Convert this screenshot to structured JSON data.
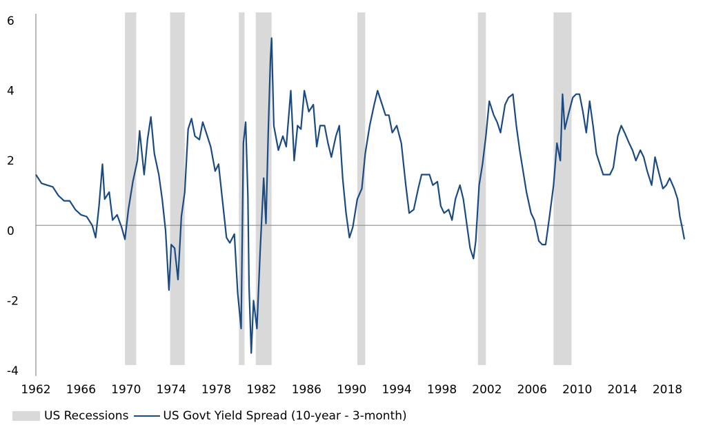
{
  "chart_data": {
    "type": "line",
    "title": "",
    "xlabel": "",
    "ylabel": "",
    "xlim": [
      1962,
      2019.5
    ],
    "ylim": [
      -4,
      6
    ],
    "x_ticks": [
      "1962",
      "1966",
      "1970",
      "1974",
      "1978",
      "1982",
      "1986",
      "1990",
      "1994",
      "1998",
      "2002",
      "2006",
      "2010",
      "2014",
      "2018"
    ],
    "y_ticks": [
      "6",
      "4",
      "2",
      "0",
      "-2",
      "-4"
    ],
    "grid": false,
    "legend_position": "bottom-left",
    "zero_line": 0.15,
    "recessions": [
      {
        "start": 1969.9,
        "end": 1970.9
      },
      {
        "start": 1973.9,
        "end": 1975.2
      },
      {
        "start": 1980.0,
        "end": 1980.5
      },
      {
        "start": 1981.5,
        "end": 1982.9
      },
      {
        "start": 1990.5,
        "end": 1991.2
      },
      {
        "start": 2001.2,
        "end": 2001.9
      },
      {
        "start": 2007.9,
        "end": 2009.5
      }
    ],
    "series": [
      {
        "name": "US Govt Yield Spread (10-year - 3-month)",
        "color": "#1a4a80",
        "points": [
          [
            1962.0,
            1.6
          ],
          [
            1962.5,
            1.35
          ],
          [
            1963.0,
            1.3
          ],
          [
            1963.5,
            1.25
          ],
          [
            1964.0,
            1.0
          ],
          [
            1964.5,
            0.85
          ],
          [
            1965.0,
            0.85
          ],
          [
            1965.5,
            0.6
          ],
          [
            1966.0,
            0.45
          ],
          [
            1966.5,
            0.4
          ],
          [
            1967.0,
            0.15
          ],
          [
            1967.3,
            -0.2
          ],
          [
            1967.6,
            0.7
          ],
          [
            1967.9,
            1.9
          ],
          [
            1968.1,
            0.9
          ],
          [
            1968.5,
            1.1
          ],
          [
            1968.8,
            0.3
          ],
          [
            1969.2,
            0.45
          ],
          [
            1969.6,
            0.1
          ],
          [
            1969.9,
            -0.25
          ],
          [
            1970.2,
            0.6
          ],
          [
            1970.6,
            1.4
          ],
          [
            1971.0,
            2.0
          ],
          [
            1971.2,
            2.85
          ],
          [
            1971.6,
            1.6
          ],
          [
            1971.9,
            2.6
          ],
          [
            1972.2,
            3.25
          ],
          [
            1972.5,
            2.2
          ],
          [
            1972.9,
            1.6
          ],
          [
            1973.2,
            0.9
          ],
          [
            1973.5,
            0.0
          ],
          [
            1973.8,
            -1.7
          ],
          [
            1974.0,
            -0.4
          ],
          [
            1974.3,
            -0.5
          ],
          [
            1974.6,
            -1.4
          ],
          [
            1974.9,
            0.4
          ],
          [
            1975.2,
            1.1
          ],
          [
            1975.5,
            2.9
          ],
          [
            1975.8,
            3.2
          ],
          [
            1976.1,
            2.7
          ],
          [
            1976.5,
            2.6
          ],
          [
            1976.8,
            3.1
          ],
          [
            1977.1,
            2.8
          ],
          [
            1977.5,
            2.4
          ],
          [
            1977.9,
            1.7
          ],
          [
            1978.2,
            1.9
          ],
          [
            1978.5,
            1.0
          ],
          [
            1978.9,
            -0.2
          ],
          [
            1979.2,
            -0.35
          ],
          [
            1979.6,
            -0.1
          ],
          [
            1979.9,
            -1.8
          ],
          [
            1980.2,
            -2.8
          ],
          [
            1980.4,
            2.5
          ],
          [
            1980.6,
            3.1
          ],
          [
            1980.8,
            1.0
          ],
          [
            1980.9,
            -1.6
          ],
          [
            1981.1,
            -3.5
          ],
          [
            1981.3,
            -2.0
          ],
          [
            1981.6,
            -2.8
          ],
          [
            1981.9,
            -0.5
          ],
          [
            1982.2,
            1.5
          ],
          [
            1982.4,
            0.2
          ],
          [
            1982.6,
            2.8
          ],
          [
            1982.8,
            4.9
          ],
          [
            1982.9,
            5.5
          ],
          [
            1983.1,
            3.0
          ],
          [
            1983.5,
            2.3
          ],
          [
            1983.9,
            2.7
          ],
          [
            1984.2,
            2.4
          ],
          [
            1984.6,
            4.0
          ],
          [
            1984.9,
            2.0
          ],
          [
            1985.2,
            3.0
          ],
          [
            1985.5,
            2.9
          ],
          [
            1985.8,
            4.0
          ],
          [
            1986.2,
            3.4
          ],
          [
            1986.6,
            3.6
          ],
          [
            1986.9,
            2.4
          ],
          [
            1987.2,
            3.0
          ],
          [
            1987.6,
            3.0
          ],
          [
            1987.9,
            2.5
          ],
          [
            1988.2,
            2.1
          ],
          [
            1988.6,
            2.7
          ],
          [
            1988.9,
            3.0
          ],
          [
            1989.2,
            1.5
          ],
          [
            1989.5,
            0.5
          ],
          [
            1989.8,
            -0.2
          ],
          [
            1990.1,
            0.1
          ],
          [
            1990.5,
            0.9
          ],
          [
            1990.9,
            1.2
          ],
          [
            1991.2,
            2.2
          ],
          [
            1991.6,
            3.0
          ],
          [
            1992.0,
            3.6
          ],
          [
            1992.3,
            4.0
          ],
          [
            1992.7,
            3.6
          ],
          [
            1993.0,
            3.3
          ],
          [
            1993.3,
            3.3
          ],
          [
            1993.6,
            2.8
          ],
          [
            1994.0,
            3.0
          ],
          [
            1994.4,
            2.5
          ],
          [
            1994.8,
            1.3
          ],
          [
            1995.1,
            0.5
          ],
          [
            1995.5,
            0.6
          ],
          [
            1995.9,
            1.2
          ],
          [
            1996.2,
            1.6
          ],
          [
            1996.6,
            1.6
          ],
          [
            1996.9,
            1.6
          ],
          [
            1997.2,
            1.3
          ],
          [
            1997.6,
            1.4
          ],
          [
            1997.9,
            0.7
          ],
          [
            1998.2,
            0.5
          ],
          [
            1998.6,
            0.6
          ],
          [
            1998.9,
            0.3
          ],
          [
            1999.2,
            0.9
          ],
          [
            1999.6,
            1.3
          ],
          [
            1999.9,
            0.9
          ],
          [
            2000.2,
            0.2
          ],
          [
            2000.5,
            -0.5
          ],
          [
            2000.8,
            -0.8
          ],
          [
            2001.0,
            -0.3
          ],
          [
            2001.3,
            1.3
          ],
          [
            2001.6,
            1.9
          ],
          [
            2001.9,
            2.7
          ],
          [
            2002.2,
            3.7
          ],
          [
            2002.6,
            3.3
          ],
          [
            2002.9,
            3.1
          ],
          [
            2003.2,
            2.8
          ],
          [
            2003.6,
            3.6
          ],
          [
            2003.9,
            3.8
          ],
          [
            2004.3,
            3.9
          ],
          [
            2004.6,
            3.0
          ],
          [
            2004.9,
            2.3
          ],
          [
            2005.2,
            1.7
          ],
          [
            2005.5,
            1.1
          ],
          [
            2005.9,
            0.5
          ],
          [
            2006.2,
            0.3
          ],
          [
            2006.6,
            -0.3
          ],
          [
            2006.9,
            -0.4
          ],
          [
            2007.2,
            -0.4
          ],
          [
            2007.5,
            0.3
          ],
          [
            2007.9,
            1.3
          ],
          [
            2008.2,
            2.5
          ],
          [
            2008.5,
            2.0
          ],
          [
            2008.7,
            3.9
          ],
          [
            2008.9,
            2.9
          ],
          [
            2009.2,
            3.3
          ],
          [
            2009.6,
            3.8
          ],
          [
            2009.9,
            3.9
          ],
          [
            2010.2,
            3.9
          ],
          [
            2010.5,
            3.4
          ],
          [
            2010.8,
            2.8
          ],
          [
            2011.1,
            3.7
          ],
          [
            2011.4,
            3.0
          ],
          [
            2011.7,
            2.2
          ],
          [
            2012.0,
            1.9
          ],
          [
            2012.3,
            1.6
          ],
          [
            2012.6,
            1.6
          ],
          [
            2012.9,
            1.6
          ],
          [
            2013.2,
            1.8
          ],
          [
            2013.6,
            2.7
          ],
          [
            2013.9,
            3.0
          ],
          [
            2014.2,
            2.8
          ],
          [
            2014.6,
            2.5
          ],
          [
            2014.9,
            2.3
          ],
          [
            2015.2,
            2.0
          ],
          [
            2015.6,
            2.3
          ],
          [
            2015.9,
            2.1
          ],
          [
            2016.2,
            1.7
          ],
          [
            2016.6,
            1.3
          ],
          [
            2016.9,
            2.1
          ],
          [
            2017.2,
            1.7
          ],
          [
            2017.6,
            1.2
          ],
          [
            2017.9,
            1.3
          ],
          [
            2018.2,
            1.5
          ],
          [
            2018.6,
            1.2
          ],
          [
            2018.9,
            0.9
          ],
          [
            2019.1,
            0.4
          ],
          [
            2019.3,
            0.1
          ],
          [
            2019.5,
            -0.25
          ]
        ]
      }
    ]
  },
  "legend": {
    "recessions_label": "US Recessions",
    "series_label": "US Govt Yield Spread (10-year - 3-month)"
  }
}
